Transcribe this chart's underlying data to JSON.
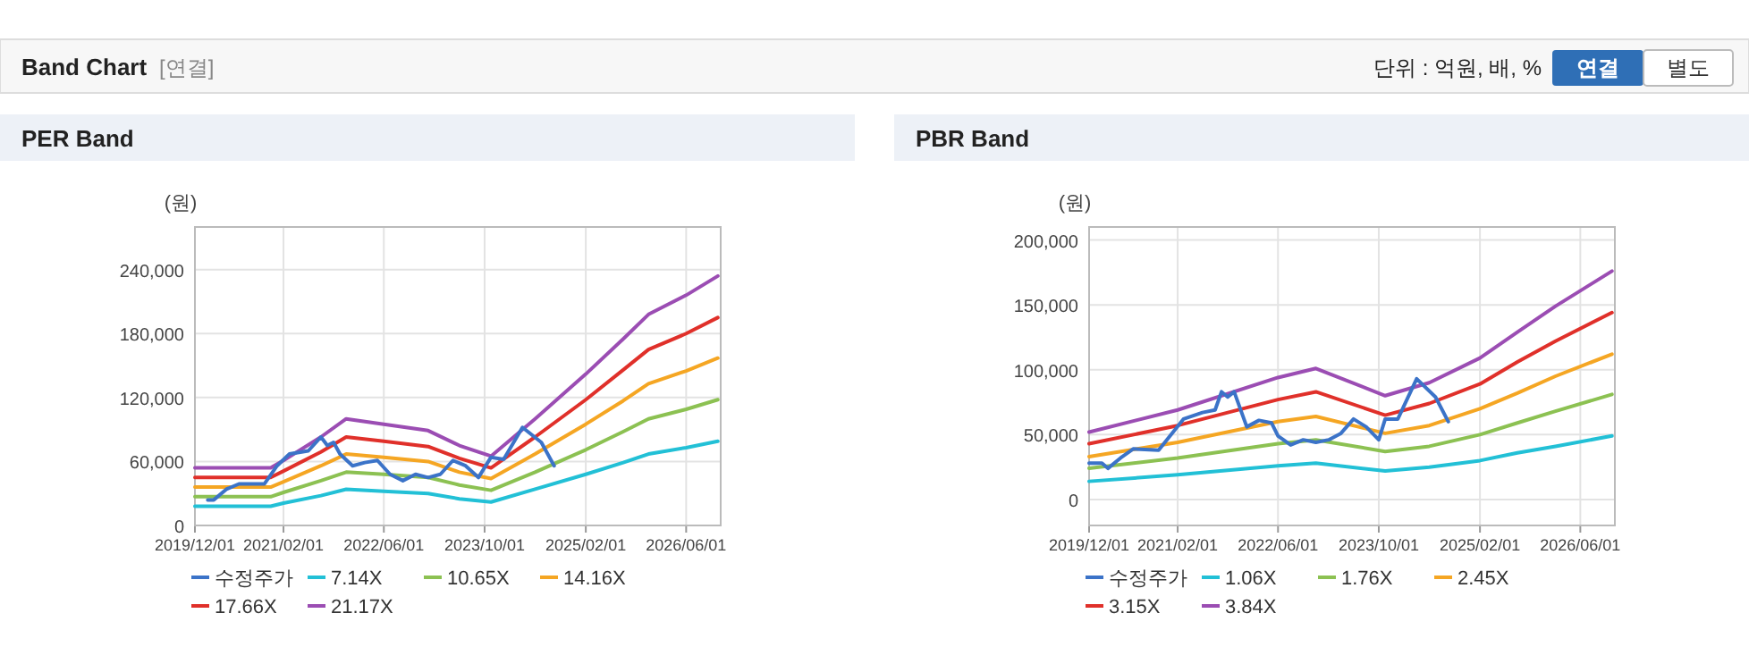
{
  "chart_data": [
    {
      "type": "other",
      "title": "Band Chart",
      "subtitle": "[연결]",
      "annotations": [
        "단위 : 억원, 배, %",
        "연결",
        "별도"
      ]
    },
    {
      "type": "line",
      "title": "PER Band",
      "ylabel": "(원)",
      "grid": true,
      "legend": "bottom",
      "line_style": "solid",
      "x": [
        "2019-12",
        "2020-12",
        "2021-02",
        "2021-08",
        "2021-12",
        "2022-06",
        "2023-01",
        "2023-06",
        "2023-11",
        "2024-06",
        "2025-02",
        "2025-08",
        "2025-12",
        "2026-06",
        "2026-11"
      ],
      "xlim": [
        "2019-12-01",
        "2026-11-15"
      ],
      "xticks": [
        {
          "value": "2019-12-01",
          "label": "2019/12/01"
        },
        {
          "value": "2021-02-01",
          "label": "2021/02/01"
        },
        {
          "value": "2022-06-01",
          "label": "2022/06/01"
        },
        {
          "value": "2023-10-01",
          "label": "2023/10/01"
        },
        {
          "value": "2025-02-01",
          "label": "2025/02/01"
        },
        {
          "value": "2026-06-01",
          "label": "2026/06/01"
        }
      ],
      "ylim": [
        0,
        280000
      ],
      "yticks": [
        {
          "value": 0,
          "label": "0"
        },
        {
          "value": 60000,
          "label": "60,000"
        },
        {
          "value": 120000,
          "label": "120,000"
        },
        {
          "value": 180000,
          "label": "180,000"
        },
        {
          "value": 240000,
          "label": "240,000"
        }
      ],
      "series": [
        {
          "name": "수정주가",
          "color": "#3b73c8",
          "x": [
            "2020-02",
            "2020-03",
            "2020-05",
            "2020-07",
            "2020-11",
            "2021-01",
            "2021-03",
            "2021-06",
            "2021-08",
            "2021-09",
            "2021-10",
            "2021-11",
            "2022-01",
            "2022-03",
            "2022-05",
            "2022-07",
            "2022-09",
            "2022-11",
            "2023-01",
            "2023-03",
            "2023-05",
            "2023-07",
            "2023-09",
            "2023-11",
            "2024-01",
            "2024-04",
            "2024-07",
            "2024-09"
          ],
          "values": [
            24000,
            24000,
            34000,
            39000,
            39000,
            56000,
            67000,
            70000,
            83000,
            75000,
            78000,
            67000,
            56000,
            59000,
            61000,
            48000,
            42000,
            48000,
            45000,
            48000,
            61000,
            56000,
            45000,
            64000,
            62000,
            92000,
            78000,
            56000
          ]
        },
        {
          "name": "7.14X",
          "color": "#22c0d6",
          "values": [
            18000,
            18000,
            21000,
            28000,
            34000,
            32000,
            30000,
            25000,
            22000,
            34000,
            48000,
            59000,
            67000,
            73000,
            79000
          ]
        },
        {
          "name": "10.65X",
          "color": "#8cc152",
          "values": [
            27000,
            27000,
            31000,
            42000,
            50000,
            48000,
            45000,
            38000,
            33000,
            50000,
            71000,
            88000,
            100000,
            109000,
            118000
          ]
        },
        {
          "name": "14.16X",
          "color": "#f5a623",
          "values": [
            36000,
            36000,
            41000,
            56000,
            67000,
            64000,
            60000,
            50000,
            44000,
            67000,
            95000,
            117000,
            133000,
            145000,
            157000
          ]
        },
        {
          "name": "17.66X",
          "color": "#e0302a",
          "values": [
            45000,
            45000,
            51000,
            69000,
            83000,
            79000,
            74000,
            63000,
            54000,
            83000,
            118000,
            146000,
            165000,
            180000,
            195000
          ]
        },
        {
          "name": "21.17X",
          "color": "#9b4db3",
          "values": [
            54000,
            54000,
            61000,
            83000,
            100000,
            95000,
            89000,
            75000,
            65000,
            100000,
            142000,
            175000,
            198000,
            216000,
            234000
          ]
        }
      ]
    },
    {
      "type": "line",
      "title": "PBR Band",
      "ylabel": "(원)",
      "grid": true,
      "legend": "bottom",
      "line_style": "solid",
      "x": [
        "2019-12",
        "2021-02",
        "2022-06",
        "2022-12",
        "2023-11",
        "2024-06",
        "2025-02",
        "2025-08",
        "2026-02",
        "2026-11"
      ],
      "xlim": [
        "2019-12-01",
        "2026-11-15"
      ],
      "xticks": [
        {
          "value": "2019-12-01",
          "label": "2019/12/01"
        },
        {
          "value": "2021-02-01",
          "label": "2021/02/01"
        },
        {
          "value": "2022-06-01",
          "label": "2022/06/01"
        },
        {
          "value": "2023-10-01",
          "label": "2023/10/01"
        },
        {
          "value": "2025-02-01",
          "label": "2025/02/01"
        },
        {
          "value": "2026-06-01",
          "label": "2026/06/01"
        }
      ],
      "ylim": [
        -20000,
        210000
      ],
      "yticks": [
        {
          "value": 0,
          "label": "0"
        },
        {
          "value": 50000,
          "label": "50,000"
        },
        {
          "value": 100000,
          "label": "100,000"
        },
        {
          "value": 150000,
          "label": "150,000"
        },
        {
          "value": 200000,
          "label": "200,000"
        }
      ],
      "series": [
        {
          "name": "수정주가",
          "color": "#3b73c8",
          "x": [
            "2019-12",
            "2020-02",
            "2020-03",
            "2020-05",
            "2020-07",
            "2020-11",
            "2021-03",
            "2021-06",
            "2021-08",
            "2021-09",
            "2021-10",
            "2021-11",
            "2022-01",
            "2022-03",
            "2022-05",
            "2022-06",
            "2022-08",
            "2022-10",
            "2022-12",
            "2023-02",
            "2023-04",
            "2023-06",
            "2023-08",
            "2023-10",
            "2023-11",
            "2024-01",
            "2024-04",
            "2024-07",
            "2024-09"
          ],
          "values": [
            28000,
            28000,
            24000,
            32000,
            39000,
            38000,
            62000,
            67000,
            69000,
            83000,
            79000,
            83000,
            56000,
            61000,
            59000,
            49000,
            42000,
            46000,
            44000,
            46000,
            51000,
            62000,
            56000,
            46000,
            62000,
            62000,
            93000,
            79000,
            60000
          ]
        },
        {
          "name": "1.06X",
          "color": "#22c0d6",
          "values": [
            14000,
            19000,
            26000,
            28000,
            22000,
            25000,
            30000,
            36000,
            41000,
            49000
          ]
        },
        {
          "name": "1.76X",
          "color": "#8cc152",
          "values": [
            24000,
            32000,
            43000,
            46000,
            37000,
            41000,
            50000,
            59000,
            68000,
            81000
          ]
        },
        {
          "name": "2.45X",
          "color": "#f5a623",
          "values": [
            33000,
            44000,
            60000,
            64000,
            51000,
            57000,
            70000,
            82000,
            95000,
            112000
          ]
        },
        {
          "name": "3.15X",
          "color": "#e0302a",
          "values": [
            43000,
            57000,
            77000,
            83000,
            65000,
            74000,
            89000,
            106000,
            122000,
            144000
          ]
        },
        {
          "name": "3.84X",
          "color": "#9b4db3",
          "values": [
            52000,
            69000,
            94000,
            101000,
            80000,
            90000,
            109000,
            129000,
            149000,
            176000
          ]
        }
      ]
    }
  ]
}
